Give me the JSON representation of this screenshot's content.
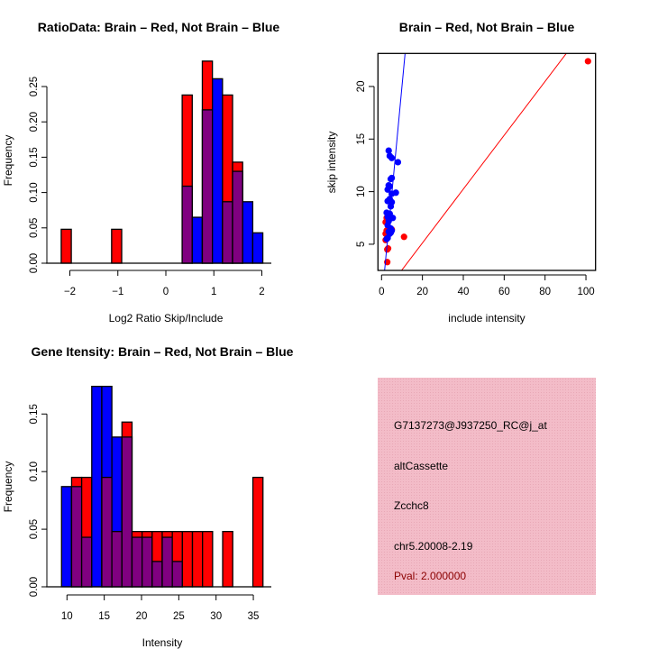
{
  "colors": {
    "red": "#ff0000",
    "blue": "#0000ff",
    "purple": "#800080",
    "panel": "#f3bcc8",
    "pval": "#8b0000"
  },
  "chart_data": [
    {
      "type": "bar",
      "title": "RatioData: Brain – Red, Not Brain – Blue",
      "xlabel": "Log2 Ratio Skip/Include",
      "ylabel": "Frequency",
      "bin_start": -2.18,
      "bin_width": 0.21,
      "xlim": [
        -2.2,
        2.1
      ],
      "ylim": [
        0,
        0.29
      ],
      "xticks": [
        -2,
        -1,
        0,
        1,
        2
      ],
      "xtick_labels": [
        "−2",
        "−1",
        "0",
        "1",
        "2"
      ],
      "yticks": [
        0,
        0.05,
        0.1,
        0.15,
        0.2,
        0.25
      ],
      "ytick_labels": [
        "0.00",
        "0.05",
        "0.10",
        "0.15",
        "0.20",
        "0.25"
      ],
      "series": [
        {
          "name": "Brain",
          "color": "red",
          "values": [
            0.048,
            0,
            0,
            0,
            0,
            0.048,
            0,
            0,
            0,
            0,
            0,
            0,
            0.238,
            0,
            0.286,
            0,
            0.238,
            0.143,
            0,
            0
          ]
        },
        {
          "name": "Not Brain",
          "color": "blue",
          "values": [
            0,
            0,
            0,
            0,
            0,
            0,
            0,
            0,
            0,
            0,
            0,
            0,
            0.109,
            0.065,
            0.217,
            0.261,
            0.087,
            0.13,
            0.087,
            0.043
          ]
        }
      ]
    },
    {
      "type": "scatter",
      "title": "Brain – Red, Not Brain – Blue",
      "xlabel": "include intensity",
      "ylabel": "skip intensity",
      "xlim": [
        -1.76,
        104.7
      ],
      "ylim": [
        2.51,
        23.14
      ],
      "xticks": [
        0,
        20,
        40,
        60,
        80,
        100
      ],
      "xtick_labels": [
        "0",
        "20",
        "40",
        "60",
        "80",
        "100"
      ],
      "yticks": [
        5,
        10,
        15,
        20
      ],
      "ytick_labels": [
        "5",
        "10",
        "15",
        "20"
      ],
      "lines": [
        {
          "name": "Not Brain fit",
          "color": "blue",
          "slope": 2.06,
          "intercept": -0.58
        },
        {
          "name": "Brain fit",
          "color": "red",
          "slope": 0.256,
          "intercept": 0.0
        }
      ],
      "series": [
        {
          "name": "Brain",
          "color": "red",
          "points": [
            [
              101,
              22.4
            ],
            [
              11,
              5.7
            ],
            [
              2.8,
              3.3
            ],
            [
              2.8,
              4.5
            ],
            [
              3.2,
              4.6
            ],
            [
              2,
              5.4
            ],
            [
              2.5,
              6.3
            ],
            [
              2,
              7.1
            ],
            [
              2.5,
              7.5
            ],
            [
              5,
              6.4
            ],
            [
              2,
              6.0
            ]
          ]
        },
        {
          "name": "Not Brain",
          "color": "blue",
          "points": [
            [
              3.5,
              13.9
            ],
            [
              4,
              13.4
            ],
            [
              5,
              13.2
            ],
            [
              8,
              12.8
            ],
            [
              4.5,
              11.2
            ],
            [
              5,
              11.3
            ],
            [
              3,
              10.2
            ],
            [
              4,
              10.5
            ],
            [
              3.5,
              10.6
            ],
            [
              7,
              9.9
            ],
            [
              5,
              9.8
            ],
            [
              3,
              9.1
            ],
            [
              4,
              9.3
            ],
            [
              5,
              9.0
            ],
            [
              4.5,
              8.6
            ],
            [
              2.5,
              8.0
            ],
            [
              4,
              7.9
            ],
            [
              3,
              7.6
            ],
            [
              5.5,
              7.5
            ],
            [
              3.5,
              7.2
            ],
            [
              3,
              6.8
            ],
            [
              4.5,
              6.5
            ],
            [
              3.5,
              6.2
            ],
            [
              4.5,
              6.1
            ],
            [
              3,
              5.6
            ],
            [
              2.5,
              5.5
            ],
            [
              4,
              6.0
            ],
            [
              5,
              6.3
            ]
          ]
        }
      ]
    },
    {
      "type": "bar",
      "title": "Gene Itensity: Brain – Red, Not Brain – Blue",
      "xlabel": "Intensity",
      "ylabel": "Frequency",
      "bin_start": 9.27,
      "bin_width": 1.351,
      "xlim": [
        9,
        37
      ],
      "ylim": [
        0,
        0.18
      ],
      "xticks": [
        10,
        15,
        20,
        25,
        30,
        35
      ],
      "xtick_labels": [
        "10",
        "15",
        "20",
        "25",
        "30",
        "35"
      ],
      "yticks": [
        0,
        0.05,
        0.1,
        0.15
      ],
      "ytick_labels": [
        "0.00",
        "0.05",
        "0.10",
        "0.15"
      ],
      "series": [
        {
          "name": "Brain",
          "color": "red",
          "values": [
            0,
            0.095,
            0.095,
            0,
            0.095,
            0.048,
            0.143,
            0.048,
            0.048,
            0.048,
            0.048,
            0.048,
            0.048,
            0.048,
            0.048,
            0,
            0.048,
            0,
            0,
            0.095
          ]
        },
        {
          "name": "Not Brain",
          "color": "blue",
          "values": [
            0.087,
            0.087,
            0.043,
            0.174,
            0.174,
            0.13,
            0.13,
            0.043,
            0.043,
            0.022,
            0.043,
            0.022,
            0,
            0,
            0,
            0,
            0,
            0,
            0,
            0
          ]
        }
      ]
    }
  ],
  "info_panel": {
    "probe_id": "G7137273@J937250_RC@j_at",
    "event_type": "altCassette",
    "gene": "Zcchc8",
    "location": "chr5.20008-2.19",
    "pval": "Pval: 2.000000"
  }
}
